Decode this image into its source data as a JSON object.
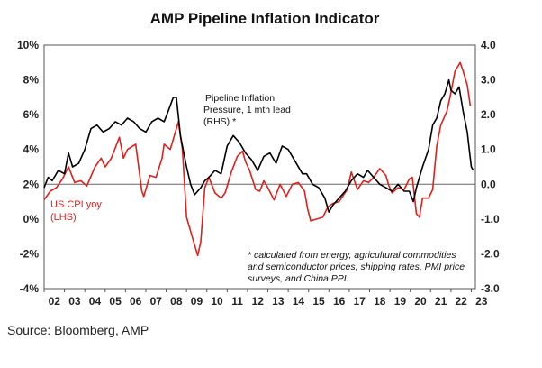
{
  "source": "Source: Bloomberg, AMP",
  "colors": {
    "cpi": "#e0201c",
    "pipeline": "#000000",
    "frame": "#555555",
    "zero_line": "#666666"
  },
  "chart_data": {
    "type": "line",
    "title": "AMP Pipeline Inflation Indicator",
    "x_ticks": [
      "02",
      "03",
      "04",
      "05",
      "06",
      "07",
      "08",
      "09",
      "10",
      "11",
      "12",
      "13",
      "14",
      "15",
      "16",
      "17",
      "18",
      "19",
      "20",
      "21",
      "22",
      "23"
    ],
    "x_range": [
      2002.0,
      2023.2
    ],
    "y_left": {
      "ticks": [
        "10%",
        "8%",
        "6%",
        "4%",
        "2%",
        "0%",
        "-2%",
        "-4%"
      ],
      "range": [
        -4,
        10
      ]
    },
    "y_right": {
      "ticks": [
        "4.0",
        "3.0",
        "2.0",
        "1.0",
        "0.0",
        "-1.0",
        "-2.0",
        "-3.0"
      ],
      "range": [
        -3,
        4
      ]
    },
    "annotations": {
      "pipeline_label": [
        "Pipeline Inflation",
        "Pressure, 1 mth lead",
        "(RHS) *"
      ],
      "cpi_label": [
        "US CPI yoy",
        "(LHS)"
      ],
      "footnote": [
        "* calculated from energy, agricultural commodities",
        "and semiconductor prices, shipping rates, PMI price",
        "surveys, and China PPI."
      ]
    },
    "series": [
      {
        "name": "US CPI yoy",
        "axis": "left",
        "points": [
          [
            2002.0,
            1.1
          ],
          [
            2002.3,
            1.6
          ],
          [
            2002.6,
            1.8
          ],
          [
            2002.9,
            2.3
          ],
          [
            2003.2,
            3.0
          ],
          [
            2003.5,
            2.1
          ],
          [
            2003.8,
            2.2
          ],
          [
            2004.1,
            1.9
          ],
          [
            2004.5,
            3.0
          ],
          [
            2004.8,
            3.5
          ],
          [
            2005.0,
            3.0
          ],
          [
            2005.3,
            3.5
          ],
          [
            2005.7,
            4.7
          ],
          [
            2005.9,
            3.5
          ],
          [
            2006.1,
            4.0
          ],
          [
            2006.5,
            4.3
          ],
          [
            2006.8,
            1.6
          ],
          [
            2006.9,
            1.3
          ],
          [
            2007.2,
            2.5
          ],
          [
            2007.5,
            2.4
          ],
          [
            2007.8,
            3.5
          ],
          [
            2007.9,
            4.3
          ],
          [
            2008.2,
            4.0
          ],
          [
            2008.5,
            5.2
          ],
          [
            2008.6,
            5.6
          ],
          [
            2008.8,
            4.0
          ],
          [
            2009.0,
            0.1
          ],
          [
            2009.2,
            -0.7
          ],
          [
            2009.4,
            -1.5
          ],
          [
            2009.55,
            -2.1
          ],
          [
            2009.7,
            -1.3
          ],
          [
            2009.9,
            1.8
          ],
          [
            2010.1,
            2.4
          ],
          [
            2010.4,
            1.5
          ],
          [
            2010.7,
            1.2
          ],
          [
            2010.9,
            1.5
          ],
          [
            2011.2,
            2.7
          ],
          [
            2011.5,
            3.6
          ],
          [
            2011.75,
            3.9
          ],
          [
            2011.9,
            3.3
          ],
          [
            2012.1,
            2.8
          ],
          [
            2012.4,
            1.7
          ],
          [
            2012.6,
            1.6
          ],
          [
            2012.8,
            2.2
          ],
          [
            2013.0,
            1.8
          ],
          [
            2013.3,
            1.1
          ],
          [
            2013.6,
            2.0
          ],
          [
            2013.9,
            1.3
          ],
          [
            2014.2,
            2.0
          ],
          [
            2014.5,
            2.1
          ],
          [
            2014.8,
            1.6
          ],
          [
            2014.95,
            0.6
          ],
          [
            2015.1,
            -0.1
          ],
          [
            2015.4,
            0.0
          ],
          [
            2015.7,
            0.1
          ],
          [
            2015.95,
            0.7
          ],
          [
            2016.2,
            0.9
          ],
          [
            2016.5,
            1.0
          ],
          [
            2016.9,
            1.7
          ],
          [
            2017.1,
            2.7
          ],
          [
            2017.4,
            1.7
          ],
          [
            2017.7,
            2.2
          ],
          [
            2017.95,
            2.1
          ],
          [
            2018.2,
            2.4
          ],
          [
            2018.5,
            2.9
          ],
          [
            2018.8,
            2.5
          ],
          [
            2018.95,
            1.9
          ],
          [
            2019.1,
            1.5
          ],
          [
            2019.4,
            1.8
          ],
          [
            2019.7,
            1.7
          ],
          [
            2019.95,
            2.3
          ],
          [
            2020.1,
            2.4
          ],
          [
            2020.3,
            0.3
          ],
          [
            2020.45,
            0.1
          ],
          [
            2020.6,
            1.2
          ],
          [
            2020.9,
            1.2
          ],
          [
            2021.1,
            1.7
          ],
          [
            2021.3,
            4.2
          ],
          [
            2021.5,
            5.4
          ],
          [
            2021.8,
            6.2
          ],
          [
            2021.95,
            7.0
          ],
          [
            2022.2,
            8.5
          ],
          [
            2022.45,
            9.0
          ],
          [
            2022.6,
            8.5
          ],
          [
            2022.8,
            7.7
          ],
          [
            2022.95,
            6.5
          ]
        ]
      },
      {
        "name": "Pipeline Inflation Pressure, 1 mth lead",
        "axis": "right",
        "points": [
          [
            2002.0,
            -0.1
          ],
          [
            2002.2,
            0.2
          ],
          [
            2002.4,
            0.1
          ],
          [
            2002.7,
            0.4
          ],
          [
            2003.0,
            0.3
          ],
          [
            2003.2,
            0.9
          ],
          [
            2003.4,
            0.5
          ],
          [
            2003.7,
            0.6
          ],
          [
            2004.0,
            1.0
          ],
          [
            2004.3,
            1.6
          ],
          [
            2004.6,
            1.7
          ],
          [
            2004.9,
            1.5
          ],
          [
            2005.2,
            1.6
          ],
          [
            2005.5,
            1.8
          ],
          [
            2005.8,
            1.7
          ],
          [
            2006.1,
            1.9
          ],
          [
            2006.4,
            1.8
          ],
          [
            2006.7,
            1.6
          ],
          [
            2007.0,
            1.5
          ],
          [
            2007.3,
            1.8
          ],
          [
            2007.6,
            1.9
          ],
          [
            2007.9,
            1.8
          ],
          [
            2008.1,
            2.1
          ],
          [
            2008.35,
            2.5
          ],
          [
            2008.5,
            2.5
          ],
          [
            2008.7,
            1.4
          ],
          [
            2008.9,
            0.8
          ],
          [
            2009.0,
            0.5
          ],
          [
            2009.2,
            0.0
          ],
          [
            2009.4,
            -0.3
          ],
          [
            2009.7,
            -0.1
          ],
          [
            2009.9,
            0.1
          ],
          [
            2010.1,
            0.2
          ],
          [
            2010.4,
            0.4
          ],
          [
            2010.7,
            0.3
          ],
          [
            2011.0,
            1.1
          ],
          [
            2011.3,
            1.4
          ],
          [
            2011.6,
            1.2
          ],
          [
            2011.9,
            0.9
          ],
          [
            2012.2,
            0.7
          ],
          [
            2012.5,
            0.4
          ],
          [
            2012.8,
            0.8
          ],
          [
            2013.1,
            0.9
          ],
          [
            2013.4,
            0.6
          ],
          [
            2013.7,
            1.1
          ],
          [
            2014.0,
            1.0
          ],
          [
            2014.3,
            0.7
          ],
          [
            2014.7,
            0.3
          ],
          [
            2014.9,
            0.3
          ],
          [
            2015.2,
            0.0
          ],
          [
            2015.5,
            -0.1
          ],
          [
            2015.8,
            -0.4
          ],
          [
            2016.0,
            -0.8
          ],
          [
            2016.2,
            -0.6
          ],
          [
            2016.5,
            -0.4
          ],
          [
            2016.8,
            -0.2
          ],
          [
            2017.1,
            0.1
          ],
          [
            2017.4,
            0.3
          ],
          [
            2017.7,
            0.2
          ],
          [
            2017.9,
            0.4
          ],
          [
            2018.2,
            0.2
          ],
          [
            2018.5,
            0.0
          ],
          [
            2018.8,
            -0.1
          ],
          [
            2019.1,
            -0.2
          ],
          [
            2019.4,
            0.0
          ],
          [
            2019.7,
            -0.2
          ],
          [
            2019.95,
            -0.2
          ],
          [
            2020.15,
            -0.5
          ],
          [
            2020.3,
            -0.1
          ],
          [
            2020.6,
            0.5
          ],
          [
            2020.9,
            1.0
          ],
          [
            2021.1,
            1.7
          ],
          [
            2021.3,
            1.9
          ],
          [
            2021.5,
            2.4
          ],
          [
            2021.7,
            2.6
          ],
          [
            2021.9,
            3.0
          ],
          [
            2022.0,
            2.7
          ],
          [
            2022.2,
            2.6
          ],
          [
            2022.4,
            2.8
          ],
          [
            2022.6,
            2.1
          ],
          [
            2022.8,
            1.5
          ],
          [
            2022.9,
            1.0
          ],
          [
            2023.0,
            0.5
          ],
          [
            2023.1,
            0.4
          ]
        ]
      }
    ]
  }
}
